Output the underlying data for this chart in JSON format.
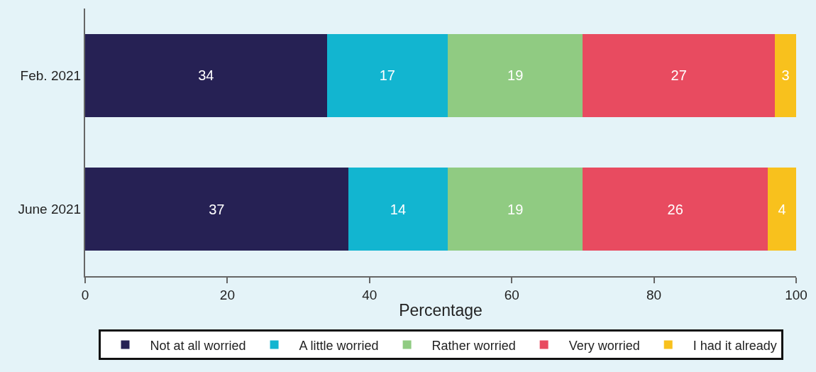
{
  "chart_data": {
    "type": "bar",
    "orientation": "horizontal",
    "stacked": true,
    "xlabel": "Percentage",
    "categories": [
      "Feb. 2021",
      "June 2021"
    ],
    "series": [
      {
        "name": "Not at all worried",
        "color": "#262154",
        "values": [
          34,
          37
        ]
      },
      {
        "name": "A little worried",
        "color": "#12b5d0",
        "values": [
          17,
          14
        ]
      },
      {
        "name": "Rather worried",
        "color": "#90cb82",
        "values": [
          19,
          19
        ]
      },
      {
        "name": "Very worried",
        "color": "#e84b60",
        "values": [
          27,
          26
        ]
      },
      {
        "name": "I had it already",
        "color": "#f8c11d",
        "values": [
          3,
          4
        ]
      }
    ],
    "xlim": [
      0,
      100
    ],
    "xticks": [
      0,
      20,
      40,
      60,
      80,
      100
    ],
    "grid": false,
    "legend": "bottom",
    "data_labels": true
  }
}
